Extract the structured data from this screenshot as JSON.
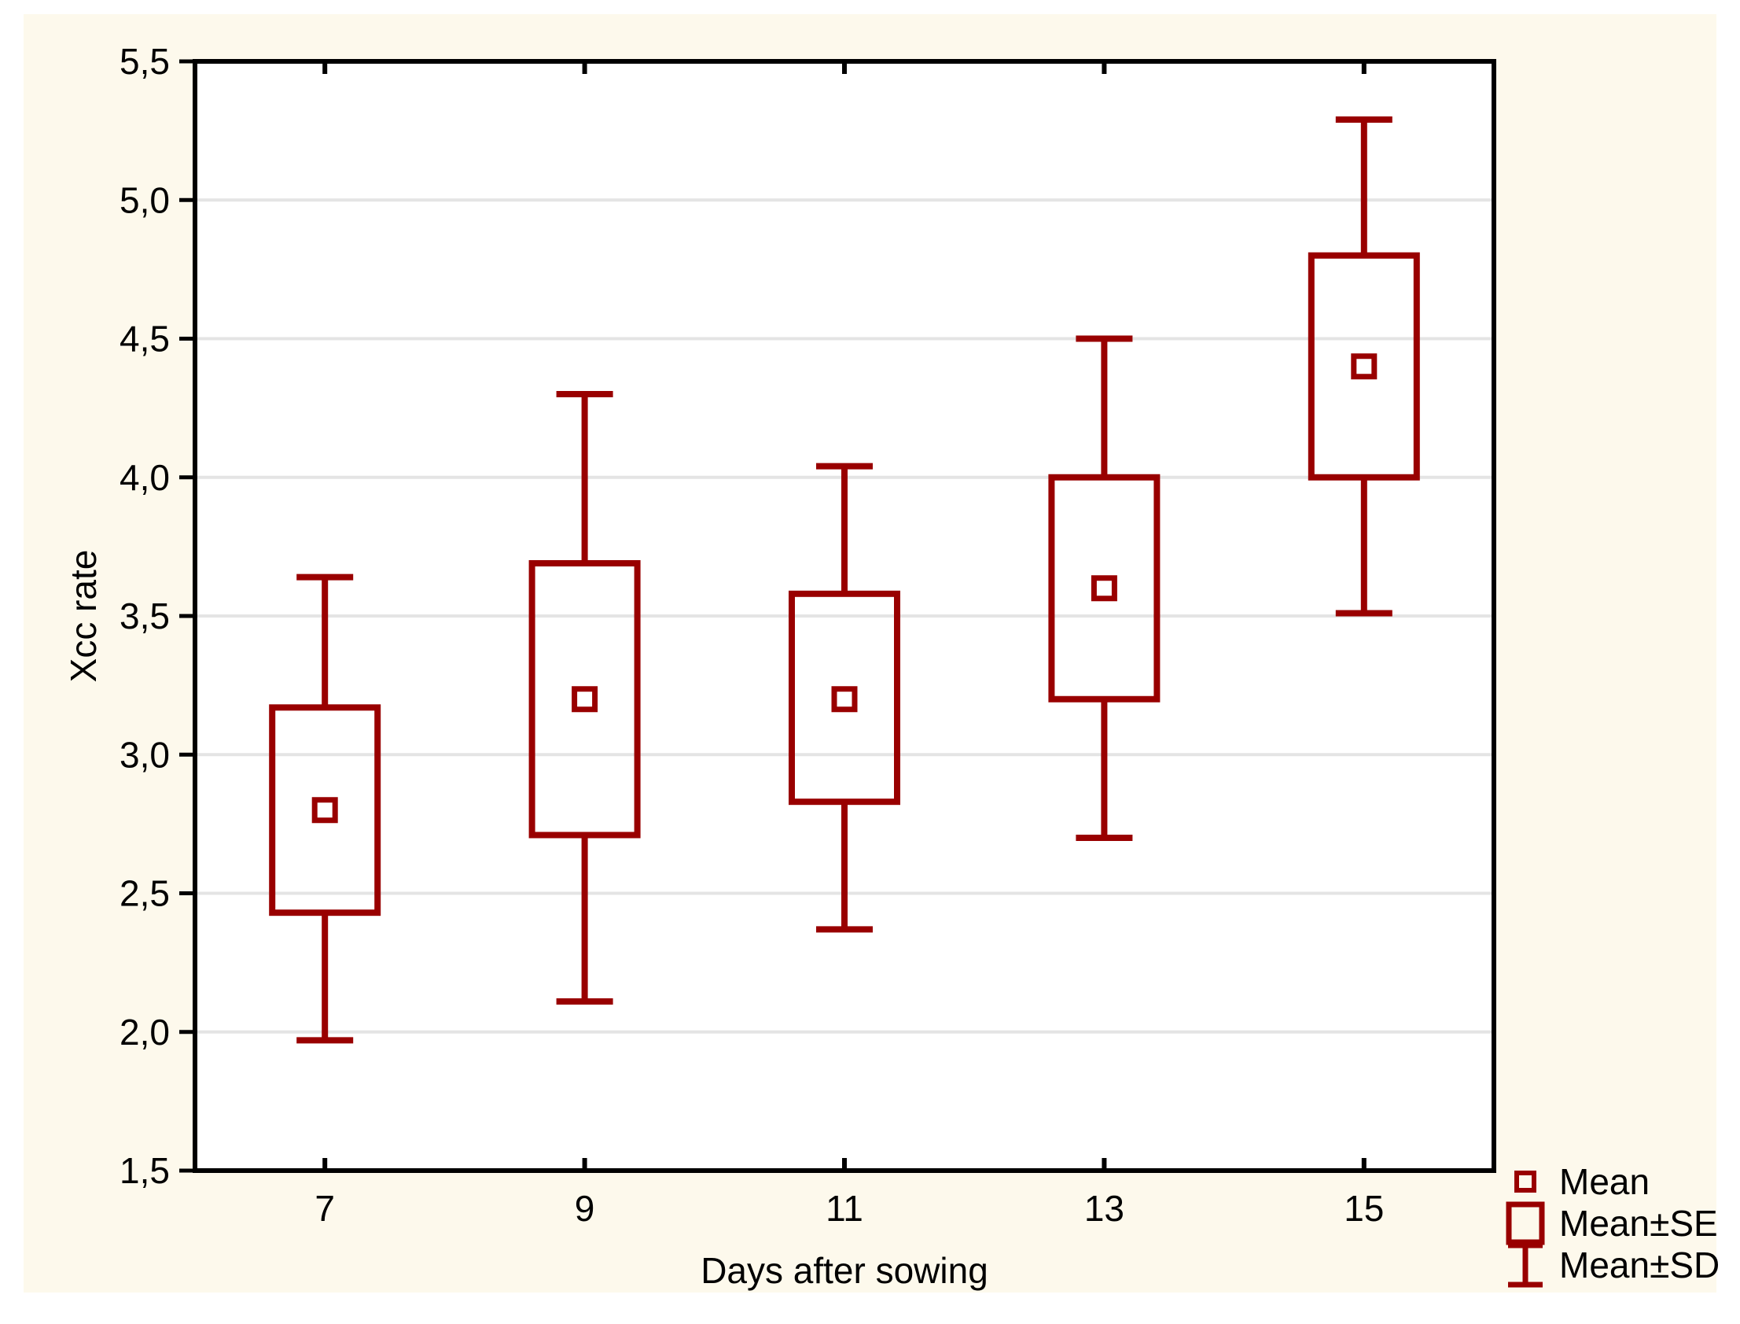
{
  "page": {
    "background": "#FFFFFF",
    "panel_background": "#FDF9EC"
  },
  "chart_data": {
    "type": "box-whisker",
    "title": "",
    "xlabel": "Days after sowing",
    "ylabel": "Xcc rate",
    "categories": [
      "7",
      "9",
      "11",
      "13",
      "15"
    ],
    "series": [
      {
        "day": "7",
        "mean": 2.8,
        "se_low": 2.43,
        "se_high": 3.17,
        "sd_low": 1.97,
        "sd_high": 3.64
      },
      {
        "day": "9",
        "mean": 3.2,
        "se_low": 2.71,
        "se_high": 3.69,
        "sd_low": 2.11,
        "sd_high": 4.3
      },
      {
        "day": "11",
        "mean": 3.2,
        "se_low": 2.83,
        "se_high": 3.58,
        "sd_low": 2.37,
        "sd_high": 4.04
      },
      {
        "day": "13",
        "mean": 3.6,
        "se_low": 3.2,
        "se_high": 4.0,
        "sd_low": 2.7,
        "sd_high": 4.5
      },
      {
        "day": "15",
        "mean": 4.4,
        "se_low": 4.0,
        "se_high": 4.8,
        "sd_low": 3.51,
        "sd_high": 5.29
      }
    ],
    "ylim": [
      1.5,
      5.5
    ],
    "ytick_values": [
      1.5,
      2.0,
      2.5,
      3.0,
      3.5,
      4.0,
      4.5,
      5.0,
      5.5
    ],
    "ytick_labels": [
      "1,5",
      "2,0",
      "2,5",
      "3,0",
      "3,5",
      "4,0",
      "4,5",
      "5,0",
      "5,5"
    ],
    "grid": "horizontal",
    "legend": {
      "position": "bottom-right",
      "items": [
        {
          "marker": "mean-square-marker",
          "label": "Mean"
        },
        {
          "marker": "se-box-marker",
          "label": "Mean±SE"
        },
        {
          "marker": "sd-whisker-marker",
          "label": "Mean±SD"
        }
      ]
    },
    "colors": {
      "series": "#990000",
      "grid": "#E4E4E4",
      "frame": "#000000",
      "text": "#000000"
    }
  }
}
